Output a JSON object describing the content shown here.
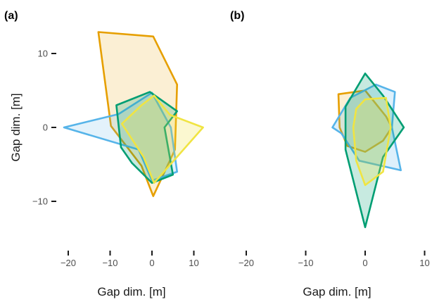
{
  "chart_data": [
    {
      "type": "scatter",
      "panel_label": "(a)",
      "xlabel": "Gap dim. [m]",
      "ylabel": "Gap dim. [m]",
      "xlim": [
        -22,
        12
      ],
      "ylim": [
        -16,
        14
      ],
      "xticks": [
        -20,
        -10,
        0,
        10
      ],
      "yticks": [
        -10,
        0,
        10
      ],
      "xtick_labels": [
        "−20",
        "−10",
        "0",
        "10"
      ],
      "ytick_labels": [
        "−10",
        "0",
        "10"
      ],
      "grid": false,
      "legend": "none",
      "series": [
        {
          "color": "#E69F00",
          "fill_opacity": 0.17,
          "points": [
            [
              -12.8,
              12.9
            ],
            [
              0.3,
              12.3
            ],
            [
              6.0,
              5.8
            ],
            [
              5.5,
              -3.0
            ],
            [
              0.3,
              -9.3
            ],
            [
              -2.5,
              -5.2
            ],
            [
              -9.8,
              0.2
            ],
            [
              -12.8,
              12.9
            ]
          ]
        },
        {
          "color": "#56B4E9",
          "fill_opacity": 0.17,
          "points": [
            [
              -21.0,
              0.0
            ],
            [
              -8.0,
              1.8
            ],
            [
              0.0,
              4.7
            ],
            [
              4.5,
              0.0
            ],
            [
              6.0,
              -6.0
            ],
            [
              0.0,
              -7.2
            ],
            [
              -3.2,
              -3.0
            ],
            [
              -21.0,
              0.0
            ]
          ]
        },
        {
          "color": "#009E73",
          "fill_opacity": 0.22,
          "points": [
            [
              -8.5,
              3.0
            ],
            [
              -0.5,
              4.8
            ],
            [
              6.0,
              2.2
            ],
            [
              3.0,
              0.0
            ],
            [
              5.0,
              -6.4
            ],
            [
              0.0,
              -7.5
            ],
            [
              -4.8,
              -4.8
            ],
            [
              -7.4,
              -2.7
            ],
            [
              -8.5,
              3.0
            ]
          ]
        },
        {
          "color": "#F0E442",
          "fill_opacity": 0.25,
          "points": [
            [
              -2.5,
              3.0
            ],
            [
              0.5,
              4.3
            ],
            [
              4.3,
              1.7
            ],
            [
              12.2,
              0.0
            ],
            [
              0.5,
              -7.5
            ],
            [
              -2.0,
              -4.0
            ],
            [
              -7.2,
              0.5
            ],
            [
              -2.5,
              3.0
            ]
          ]
        }
      ]
    },
    {
      "type": "scatter",
      "panel_label": "(b)",
      "xlabel": "Gap dim. [m]",
      "ylabel": "",
      "xlim": [
        -22,
        12
      ],
      "ylim": [
        -16,
        14
      ],
      "xticks": [
        -20,
        -10,
        0,
        10
      ],
      "xtick_labels": [
        "−20",
        "−10",
        "0",
        "10"
      ],
      "grid": false,
      "legend": "none",
      "series": [
        {
          "color": "#E69F00",
          "fill_opacity": 0.17,
          "points": [
            [
              -4.5,
              4.5
            ],
            [
              0.0,
              5.0
            ],
            [
              3.5,
              1.5
            ],
            [
              4.5,
              0.0
            ],
            [
              3.0,
              -1.8
            ],
            [
              0.0,
              -3.3
            ],
            [
              -3.0,
              -2.5
            ],
            [
              -4.3,
              0.0
            ],
            [
              -4.5,
              4.5
            ]
          ]
        },
        {
          "color": "#56B4E9",
          "fill_opacity": 0.2,
          "points": [
            [
              -5.5,
              0.0
            ],
            [
              -2.5,
              4.0
            ],
            [
              1.8,
              5.8
            ],
            [
              5.0,
              4.8
            ],
            [
              4.5,
              0.0
            ],
            [
              6.0,
              -5.8
            ],
            [
              -1.0,
              -4.5
            ],
            [
              -4.0,
              -0.8
            ],
            [
              -5.5,
              0.0
            ]
          ]
        },
        {
          "color": "#009E73",
          "fill_opacity": 0.22,
          "points": [
            [
              -3.3,
              2.8
            ],
            [
              0.0,
              7.3
            ],
            [
              3.0,
              4.3
            ],
            [
              6.5,
              0.0
            ],
            [
              3.0,
              -4.0
            ],
            [
              0.0,
              -13.5
            ],
            [
              -3.3,
              -3.0
            ],
            [
              -3.3,
              2.8
            ]
          ]
        },
        {
          "color": "#F0E442",
          "fill_opacity": 0.25,
          "points": [
            [
              -1.5,
              2.5
            ],
            [
              0.0,
              3.8
            ],
            [
              3.5,
              4.0
            ],
            [
              4.3,
              0.0
            ],
            [
              3.0,
              -6.0
            ],
            [
              0.0,
              -7.8
            ],
            [
              -1.5,
              -4.5
            ],
            [
              -2.0,
              0.0
            ],
            [
              -1.5,
              2.5
            ]
          ]
        }
      ]
    }
  ]
}
